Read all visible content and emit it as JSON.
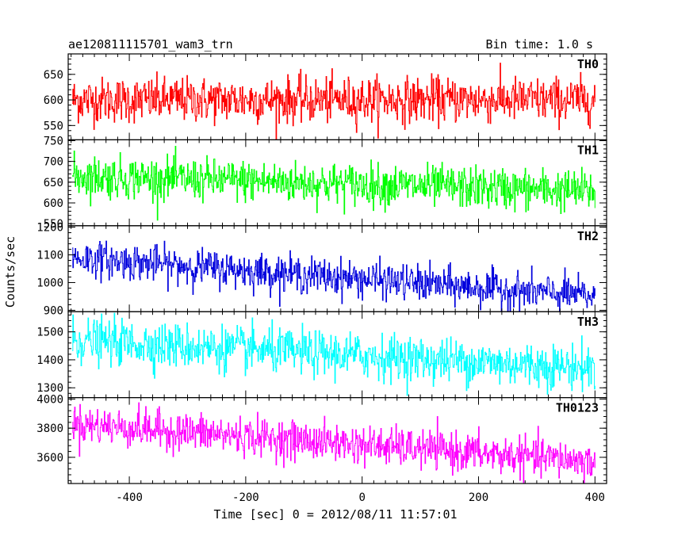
{
  "header": {
    "title": "ae120811115701_wam3_trn",
    "bin_time": "Bin time: 1.0 s"
  },
  "chart_data": {
    "type": "line",
    "title": "ae120811115701_wam3_trn",
    "xlabel": "Time [sec] 0 = 2012/08/11 11:57:01",
    "ylabel": "Counts/sec",
    "xlim": [
      -505,
      420
    ],
    "x_range": [
      -498,
      400
    ],
    "x_ticks": [
      -400,
      -200,
      0,
      200,
      400
    ],
    "grid": false,
    "panels": [
      {
        "name": "TH0",
        "color": "#ff0000",
        "ylim": [
          522,
          690
        ],
        "y_ticks": [
          550,
          600,
          650
        ],
        "trend": [
          600,
          600
        ],
        "noise_sd": 22
      },
      {
        "name": "TH1",
        "color": "#00ff00",
        "ylim": [
          545,
          752
        ],
        "y_ticks": [
          550,
          600,
          650,
          700,
          750
        ],
        "trend": [
          665,
          628
        ],
        "noise_sd": 25
      },
      {
        "name": "TH2",
        "color": "#0000dd",
        "ylim": [
          895,
          1205
        ],
        "y_ticks": [
          900,
          1000,
          1100,
          1200
        ],
        "trend": [
          1090,
          950
        ],
        "noise_sd": 32
      },
      {
        "name": "TH3",
        "color": "#00ffff",
        "ylim": [
          1265,
          1572
        ],
        "y_ticks": [
          1300,
          1400,
          1500
        ],
        "trend": [
          1470,
          1370
        ],
        "noise_sd": 40
      },
      {
        "name": "TH0123",
        "color": "#ff00ff",
        "ylim": [
          3420,
          4010
        ],
        "y_ticks": [
          3600,
          3800,
          4000
        ],
        "trend": [
          3830,
          3570
        ],
        "noise_sd": 65
      }
    ]
  }
}
